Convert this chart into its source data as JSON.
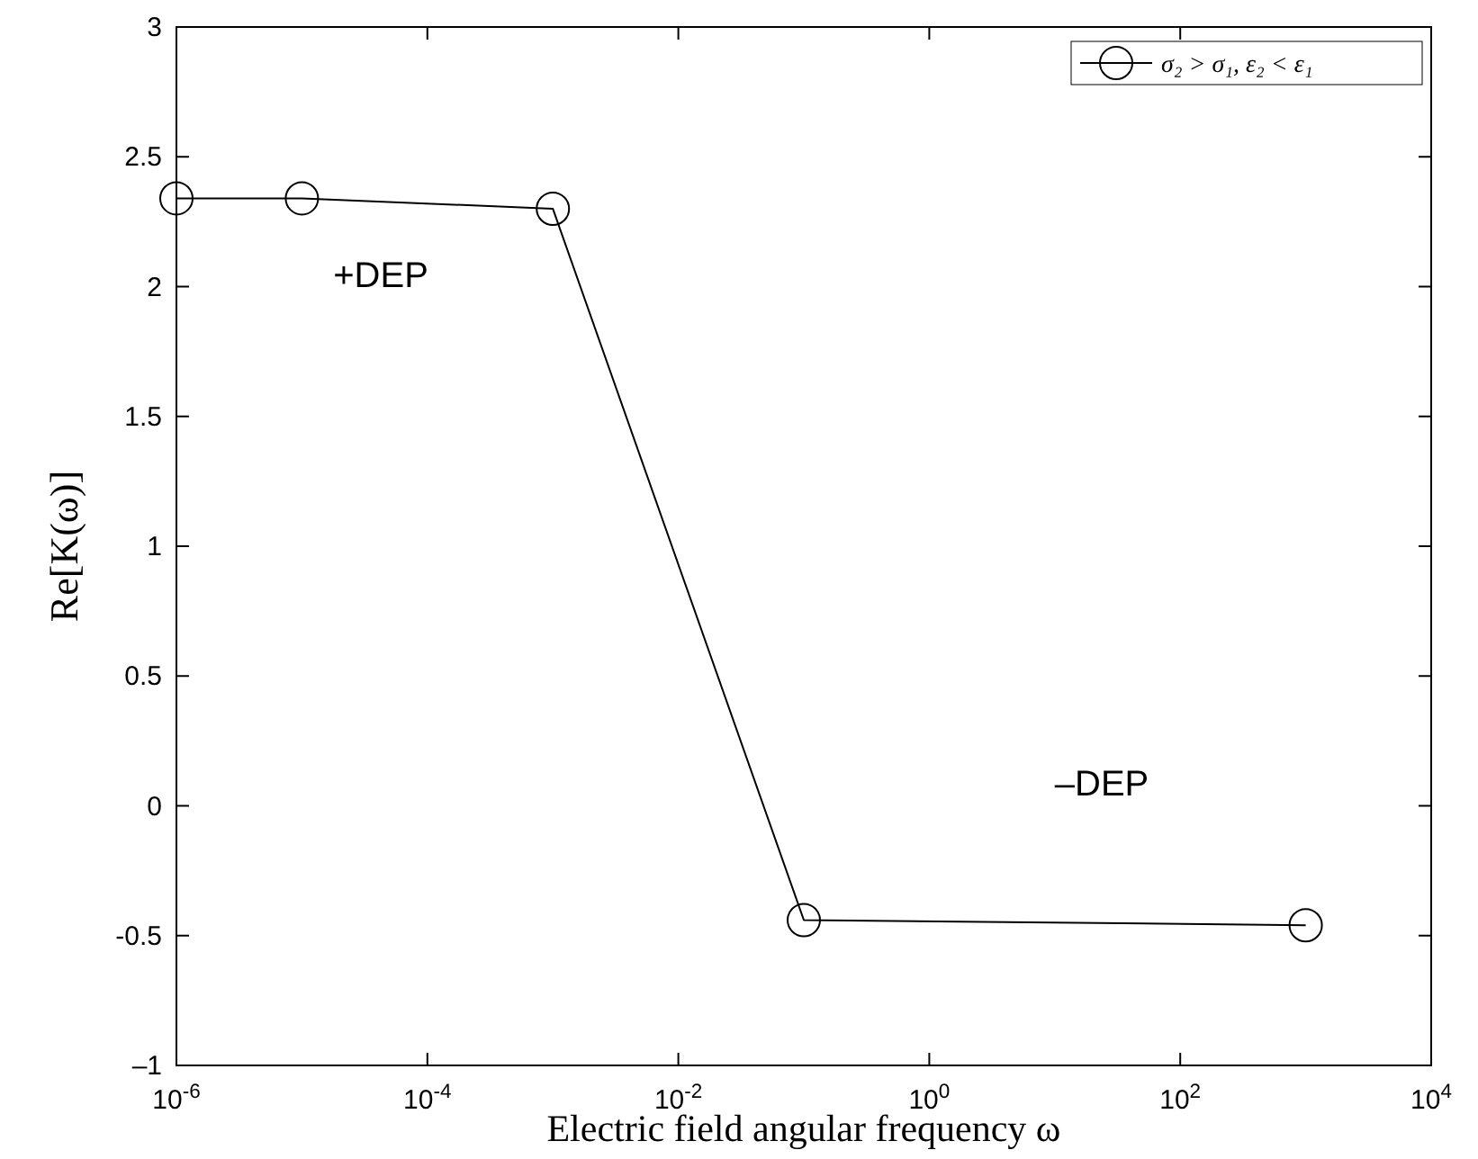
{
  "chart_data": {
    "type": "line",
    "xlabel": "Electric field angular frequency ω",
    "ylabel": "Re[K(ω)]",
    "log": "x",
    "marker": "circle",
    "legend": "top right",
    "grid": false,
    "xlim": [
      1e-06,
      10000
    ],
    "ylim": [
      -1,
      3
    ],
    "xticks": [
      {
        "value": 1e-06,
        "label": "10$^{-6}$"
      },
      {
        "value": 0.0001,
        "label": "10$^{-4}$"
      },
      {
        "value": 0.01,
        "label": "10$^{-2}$"
      },
      {
        "value": 1,
        "label": "10$^{0}$"
      },
      {
        "value": 100,
        "label": "10$^{2}$"
      },
      {
        "value": 10000,
        "label": "10$^{4}$"
      }
    ],
    "yticks": [
      {
        "value": -1,
        "label": "–1"
      },
      -0.5,
      0,
      0.5,
      1,
      1.5,
      2,
      2.5,
      3
    ],
    "x": [
      1e-06,
      1e-05,
      0.001,
      0.1,
      1000
    ],
    "series": [
      {
        "name": "σ₂ > σ₁, ε₂ < ε₁",
        "color": "#000000",
        "values": [
          2.34,
          2.34,
          2.3,
          -0.44,
          -0.46
        ]
      }
    ],
    "annotations": [
      "+DEP",
      "–DEP"
    ]
  }
}
